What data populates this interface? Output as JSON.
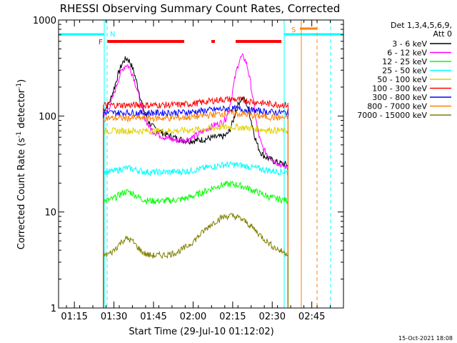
{
  "chart_data": {
    "type": "line",
    "title": "RHESSI Observing Summary Count Rates, Corrected",
    "xlabel": "Start Time (29-Jul-10 01:12:02)",
    "ylabel_main": "Corrected Count Rate (s",
    "ylabel_sup1": "-1",
    "ylabel_mid": " detector",
    "ylabel_sup2": "-1",
    "ylabel_end": ")",
    "yscale": "log",
    "ylim": [
      1,
      1000
    ],
    "xlim_minutes": [
      -3,
      105
    ],
    "ytick_labels": [
      {
        "value": 1,
        "label": "1"
      },
      {
        "value": 10,
        "label": "10"
      },
      {
        "value": 100,
        "label": "100"
      },
      {
        "value": 1000,
        "label": "1000"
      }
    ],
    "xtick_labels": [
      {
        "minute": 3,
        "label": "01:15"
      },
      {
        "minute": 18,
        "label": "01:30"
      },
      {
        "minute": 33,
        "label": "01:45"
      },
      {
        "minute": 48,
        "label": "02:00"
      },
      {
        "minute": 63,
        "label": "02:15"
      },
      {
        "minute": 78,
        "label": "02:30"
      },
      {
        "minute": 93,
        "label": "02:45"
      }
    ],
    "legend_header": [
      "Det 1,3,4,5,6,9,",
      "Att 0"
    ],
    "legend_placement": "right",
    "flag_labels": {
      "f": "F",
      "n": "N",
      "s": "S"
    },
    "footer_date": "15-Oct-2021 18:08",
    "flag_colors": {
      "saa_night": "#00ffff",
      "flare": "#ff0000",
      "sunlight_marker": "#ff8000"
    },
    "series": [
      {
        "name": "3 - 6 keV",
        "color": "#000000",
        "base": 110,
        "p1": 2.6,
        "p2": 0.6,
        "floor": 0.0
      },
      {
        "name": "6 - 12 keV",
        "color": "#ff00ff",
        "base": 100,
        "p1": 2.4,
        "p2": 1.5,
        "floor": 0.0
      },
      {
        "name": "12 - 25 keV",
        "color": "#00ff00",
        "base": 13,
        "p1": 0.25,
        "p2": 0.5,
        "floor": 0.0
      },
      {
        "name": "25 - 50 keV",
        "color": "#00ffff",
        "base": 26,
        "p1": 0.1,
        "p2": 0.2,
        "floor": 0.0
      },
      {
        "name": "50 - 100 keV",
        "color": "#e0d000",
        "base": 70,
        "p1": 0.0,
        "p2": 0.1,
        "floor": 0.0
      },
      {
        "name": "100 - 300 keV",
        "color": "#ff0000",
        "base": 130,
        "p1": 0.0,
        "p2": 0.15,
        "floor": 0.0
      },
      {
        "name": "300 - 800 keV",
        "color": "#0000ff",
        "base": 108,
        "p1": 0.0,
        "p2": 0.1,
        "floor": 0.0
      },
      {
        "name": "800 - 7000 keV",
        "color": "#ff8000",
        "base": 95,
        "p1": 0.0,
        "p2": 0.12,
        "floor": 0.0
      },
      {
        "name": "7000 - 15000 keV",
        "color": "#808000",
        "base": 3.5,
        "p1": 0.5,
        "p2": 1.6,
        "floor": 0.0
      }
    ]
  }
}
